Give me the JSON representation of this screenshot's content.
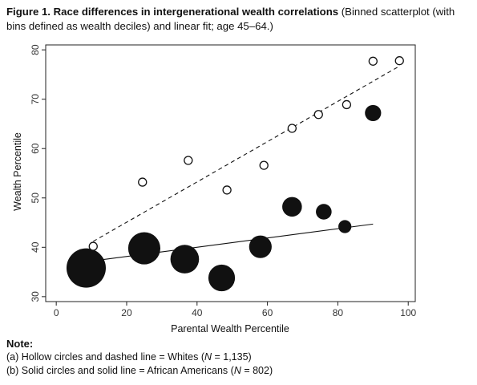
{
  "caption": {
    "figure_label": "Figure 1.",
    "title": "Race differences in intergenerational wealth correlations",
    "subtitle": "(Binned scatterplot (with bins defined as wealth deciles) and linear fit; age 45–64.)"
  },
  "chart_data": {
    "type": "scatter",
    "xlabel": "Parental Wealth Percentile",
    "ylabel": "Wealth Percentile",
    "xlim": [
      -3,
      102
    ],
    "ylim": [
      29,
      81
    ],
    "xticks": [
      0,
      20,
      40,
      60,
      80,
      100
    ],
    "yticks": [
      30,
      40,
      50,
      60,
      70,
      80
    ],
    "grid": false,
    "series": [
      {
        "name": "Whites",
        "marker": "hollow-circle",
        "fit_line": "dashed",
        "points": [
          {
            "x": 10.5,
            "y": 40.2
          },
          {
            "x": 24.5,
            "y": 53.2
          },
          {
            "x": 37.5,
            "y": 57.6
          },
          {
            "x": 48.5,
            "y": 51.6
          },
          {
            "x": 59.0,
            "y": 56.6
          },
          {
            "x": 67.0,
            "y": 64.1
          },
          {
            "x": 74.5,
            "y": 66.9
          },
          {
            "x": 82.5,
            "y": 68.9
          },
          {
            "x": 90.0,
            "y": 77.7
          },
          {
            "x": 97.5,
            "y": 77.8
          }
        ],
        "fit": {
          "x": [
            10.5,
            97.5
          ],
          "y": [
            41.2,
            76.7
          ]
        }
      },
      {
        "name": "African Americans",
        "marker": "solid-circle",
        "fit_line": "solid",
        "points": [
          {
            "x": 8.5,
            "y": 35.8,
            "weight": 10
          },
          {
            "x": 25.0,
            "y": 39.8,
            "weight": 6.7
          },
          {
            "x": 36.5,
            "y": 37.6,
            "weight": 5.3
          },
          {
            "x": 47.0,
            "y": 33.8,
            "weight": 4.6
          },
          {
            "x": 58.0,
            "y": 40.1,
            "weight": 3.3
          },
          {
            "x": 67.0,
            "y": 48.2,
            "weight": 2.5
          },
          {
            "x": 76.0,
            "y": 47.2,
            "weight": 1.6
          },
          {
            "x": 82.0,
            "y": 44.2,
            "weight": 1.1
          },
          {
            "x": 90.0,
            "y": 67.2,
            "weight": 1.7
          }
        ],
        "fit": {
          "x": [
            10.0,
            90.0
          ],
          "y": [
            37.2,
            44.7
          ]
        }
      }
    ]
  },
  "note": {
    "header": "Note:",
    "line_a_prefix": "(a) Hollow circles and dashed line = Whites (",
    "line_a_n": "N",
    "line_a_suffix": " = 1,135)",
    "line_b_prefix": "(b) Solid circles and solid line = African Americans (",
    "line_b_n": "N",
    "line_b_suffix": " = 802)"
  }
}
